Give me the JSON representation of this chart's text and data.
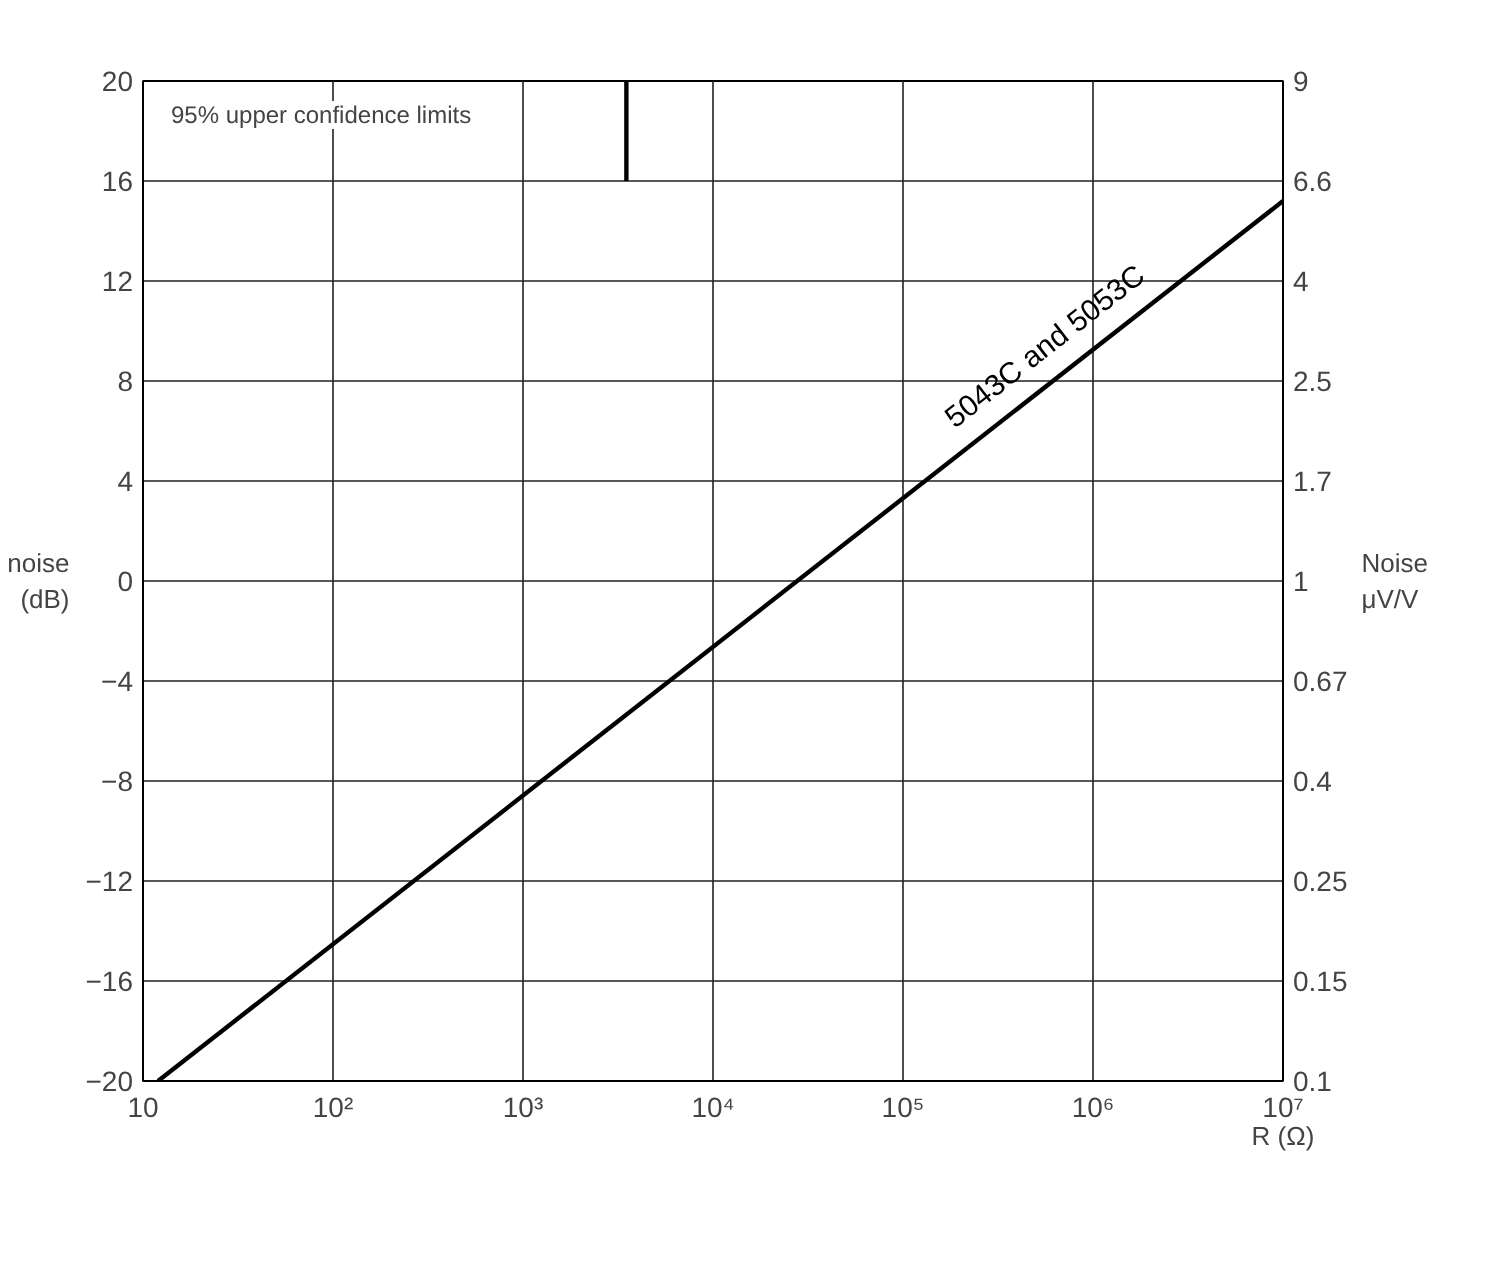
{
  "chart_data": {
    "type": "line",
    "ylabel": "noise\n(dB)",
    "y2label": "Noise\nμV/V",
    "xlabel": "R (Ω)",
    "log": "x",
    "grid": true,
    "marker": "none",
    "line_style": "solid",
    "xlim": [
      10,
      10000000
    ],
    "xticks": [
      {
        "value": 10,
        "label": "10"
      },
      {
        "value": 100,
        "label": "10²"
      },
      {
        "value": 1000,
        "label": "10³"
      },
      {
        "value": 10000,
        "label": "10⁴"
      },
      {
        "value": 100000,
        "label": "10⁵"
      },
      {
        "value": 1000000,
        "label": "10⁶"
      },
      {
        "value": 10000000,
        "label": "10⁷"
      }
    ],
    "ylim": [
      -20,
      20
    ],
    "yticks": [
      -20,
      -16,
      -12,
      -8,
      -4,
      0,
      4,
      8,
      12,
      16,
      20
    ],
    "series": [
      {
        "name": "5043C and 5053C",
        "color": "#000000",
        "x": [
          12,
          10000000
        ],
        "values": [
          -20,
          15.2
        ]
      },
      {
        "color": "#000000",
        "x": [
          3500,
          3500
        ],
        "values": [
          16,
          20
        ]
      }
    ],
    "annotations": [
      "95% upper confidence limits",
      "0.1",
      "0.15",
      "0.25",
      "0.4",
      "0.67",
      "1",
      "1.7",
      "2.5",
      "4",
      "6.6",
      "9"
    ]
  }
}
